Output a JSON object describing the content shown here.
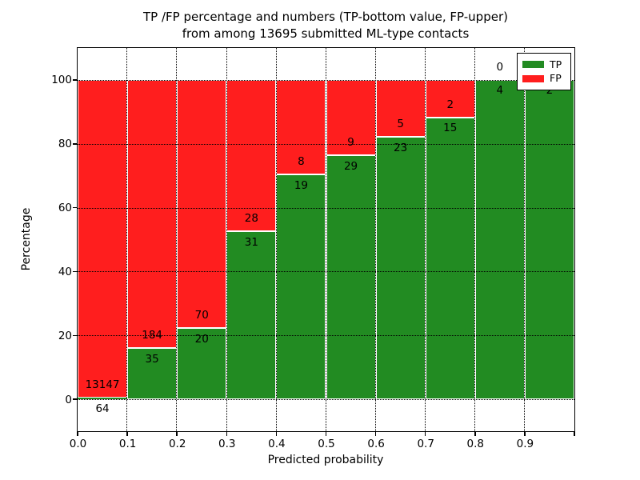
{
  "title": {
    "line1": "TP /FP percentage and numbers (TP-bottom value, FP-upper)",
    "line2": "from among 13695 submitted ML-type contacts"
  },
  "axes": {
    "x_label": "Predicted probability",
    "y_label": "Percentage",
    "x_ticks": [
      "0.0",
      "0.1",
      "0.2",
      "0.3",
      "0.4",
      "0.5",
      "0.6",
      "0.7",
      "0.8",
      "0.9"
    ],
    "y_ticks": [
      0,
      20,
      40,
      60,
      80,
      100
    ],
    "ylim": [
      -10,
      110
    ],
    "xlim": [
      0.0,
      1.0
    ]
  },
  "colors": {
    "tp": "#228B22",
    "fp": "#FF1E1E",
    "grid": "#000000",
    "text": "#000000"
  },
  "legend": {
    "items": [
      {
        "label": "TP",
        "color": "#228B22"
      },
      {
        "label": "FP",
        "color": "#FF1E1E"
      }
    ]
  },
  "chart_data": {
    "type": "bar",
    "stacked": true,
    "normalized_to_percent": true,
    "title": "TP /FP percentage and numbers (TP-bottom value, FP-upper) from among 13695 submitted ML-type contacts",
    "xlabel": "Predicted probability",
    "ylabel": "Percentage",
    "total_contacts": 13695,
    "bin_width": 0.1,
    "grid": true,
    "legend_position": "upper right",
    "bins": [
      {
        "range": [
          0.0,
          0.1
        ],
        "tp": 64,
        "fp": 13147,
        "tp_pct": 0.5,
        "fp_label_visible": true
      },
      {
        "range": [
          0.1,
          0.2
        ],
        "tp": 35,
        "fp": 184,
        "tp_pct": 16.0,
        "fp_label_visible": true
      },
      {
        "range": [
          0.2,
          0.3
        ],
        "tp": 20,
        "fp": 70,
        "tp_pct": 22.2,
        "fp_label_visible": true
      },
      {
        "range": [
          0.3,
          0.4
        ],
        "tp": 31,
        "fp": 28,
        "tp_pct": 52.5,
        "fp_label_visible": true
      },
      {
        "range": [
          0.4,
          0.5
        ],
        "tp": 19,
        "fp": 8,
        "tp_pct": 70.4,
        "fp_label_visible": true
      },
      {
        "range": [
          0.5,
          0.6
        ],
        "tp": 29,
        "fp": 9,
        "tp_pct": 76.3,
        "fp_label_visible": true
      },
      {
        "range": [
          0.6,
          0.7
        ],
        "tp": 23,
        "fp": 5,
        "tp_pct": 82.1,
        "fp_label_visible": true
      },
      {
        "range": [
          0.7,
          0.8
        ],
        "tp": 15,
        "fp": 2,
        "tp_pct": 88.2,
        "fp_label_visible": true
      },
      {
        "range": [
          0.8,
          0.9
        ],
        "tp": 4,
        "fp": 0,
        "tp_pct": 100.0,
        "fp_label_visible": true
      },
      {
        "range": [
          0.9,
          1.0
        ],
        "tp": 2,
        "fp": 0,
        "tp_pct": 100.0,
        "fp_label_visible": false
      }
    ]
  }
}
